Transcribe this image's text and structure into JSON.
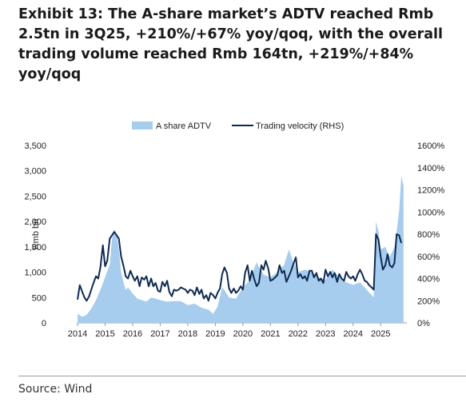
{
  "title": "Exhibit 13: The A-share market’s ADTV reached Rmb 2.5tn in 3Q25, +210%/+67% yoy/qoq, with the overall trading volume reached Rmb 164tn, +219%/+84% yoy/qoq",
  "source": "Source: Wind",
  "chart_data": {
    "type": "area",
    "ylabel": "Rmb bn",
    "ylim": [
      0,
      3500
    ],
    "y2lim": [
      0,
      1600
    ],
    "y_ticks": [
      "0",
      "500",
      "1,000",
      "1,500",
      "2,000",
      "2,500",
      "3,000",
      "3,500"
    ],
    "y2_ticks": [
      "0%",
      "200%",
      "400%",
      "600%",
      "800%",
      "1000%",
      "1200%",
      "1400%",
      "1600%"
    ],
    "x_ticks": [
      "2014",
      "2015",
      "2016",
      "2017",
      "2018",
      "2019",
      "2020",
      "2021",
      "2022",
      "2023",
      "2024",
      "2025"
    ],
    "legend_position": "top-center",
    "colors": {
      "area": "#a7cdee",
      "line": "#0f2a52"
    },
    "series": [
      {
        "name": "A share ADTV",
        "kind": "area",
        "axis": "left",
        "x": [
          2014.0,
          2014.17,
          2014.33,
          2014.5,
          2014.67,
          2014.83,
          2015.0,
          2015.17,
          2015.25,
          2015.33,
          2015.42,
          2015.5,
          2015.58,
          2015.67,
          2015.75,
          2015.83,
          2016.0,
          2016.17,
          2016.33,
          2016.5,
          2016.67,
          2016.83,
          2017.0,
          2017.25,
          2017.5,
          2017.75,
          2018.0,
          2018.25,
          2018.5,
          2018.75,
          2018.92,
          2019.08,
          2019.25,
          2019.33,
          2019.5,
          2019.75,
          2020.0,
          2020.25,
          2020.5,
          2020.58,
          2020.75,
          2021.0,
          2021.25,
          2021.5,
          2021.67,
          2021.83,
          2022.0,
          2022.25,
          2022.5,
          2022.75,
          2023.0,
          2023.25,
          2023.5,
          2023.75,
          2024.0,
          2024.25,
          2024.5,
          2024.67,
          2024.75,
          2024.83,
          2024.92,
          2025.0,
          2025.17,
          2025.33,
          2025.5,
          2025.58,
          2025.67,
          2025.75,
          2025.83
        ],
        "values": [
          180,
          120,
          160,
          280,
          450,
          650,
          900,
          1150,
          1650,
          1850,
          1750,
          1450,
          1000,
          800,
          650,
          700,
          580,
          480,
          450,
          420,
          500,
          480,
          450,
          420,
          430,
          430,
          350,
          380,
          300,
          260,
          180,
          320,
          700,
          650,
          500,
          480,
          700,
          850,
          1200,
          1100,
          950,
          900,
          1000,
          1150,
          1450,
          1200,
          1000,
          1050,
          1000,
          900,
          850,
          1050,
          900,
          800,
          750,
          800,
          650,
          550,
          500,
          2000,
          1800,
          1450,
          1500,
          1300,
          1500,
          1800,
          2200,
          2900,
          2700
        ]
      },
      {
        "name": "Trading velocity (RHS)",
        "kind": "line",
        "axis": "right",
        "x": [
          2014.0,
          2014.08,
          2014.17,
          2014.25,
          2014.33,
          2014.42,
          2014.5,
          2014.58,
          2014.67,
          2014.75,
          2014.83,
          2014.92,
          2015.0,
          2015.08,
          2015.17,
          2015.25,
          2015.33,
          2015.42,
          2015.5,
          2015.58,
          2015.67,
          2015.75,
          2015.83,
          2015.92,
          2016.0,
          2016.08,
          2016.17,
          2016.25,
          2016.33,
          2016.42,
          2016.5,
          2016.58,
          2016.67,
          2016.75,
          2016.83,
          2016.92,
          2017.0,
          2017.08,
          2017.17,
          2017.25,
          2017.33,
          2017.42,
          2017.5,
          2017.58,
          2017.67,
          2017.75,
          2017.83,
          2017.92,
          2018.0,
          2018.08,
          2018.17,
          2018.25,
          2018.33,
          2018.42,
          2018.5,
          2018.58,
          2018.67,
          2018.75,
          2018.83,
          2018.92,
          2019.0,
          2019.08,
          2019.17,
          2019.25,
          2019.33,
          2019.42,
          2019.5,
          2019.58,
          2019.67,
          2019.75,
          2019.83,
          2019.92,
          2020.0,
          2020.08,
          2020.17,
          2020.25,
          2020.33,
          2020.42,
          2020.5,
          2020.58,
          2020.67,
          2020.75,
          2020.83,
          2020.92,
          2021.0,
          2021.08,
          2021.17,
          2021.25,
          2021.33,
          2021.42,
          2021.5,
          2021.58,
          2021.67,
          2021.75,
          2021.83,
          2021.92,
          2022.0,
          2022.08,
          2022.17,
          2022.25,
          2022.33,
          2022.42,
          2022.5,
          2022.58,
          2022.67,
          2022.75,
          2022.83,
          2022.92,
          2023.0,
          2023.08,
          2023.17,
          2023.25,
          2023.33,
          2023.42,
          2023.5,
          2023.58,
          2023.67,
          2023.75,
          2023.83,
          2023.92,
          2024.0,
          2024.08,
          2024.17,
          2024.25,
          2024.33,
          2024.42,
          2024.5,
          2024.58,
          2024.67,
          2024.75,
          2024.83,
          2024.92,
          2025.0,
          2025.08,
          2025.17,
          2025.25,
          2025.33,
          2025.42,
          2025.5,
          2025.58,
          2025.67,
          2025.75
        ],
        "values": [
          210,
          340,
          280,
          230,
          200,
          240,
          300,
          360,
          420,
          400,
          500,
          700,
          510,
          560,
          760,
          790,
          820,
          790,
          760,
          600,
          510,
          420,
          400,
          470,
          420,
          380,
          420,
          330,
          410,
          390,
          420,
          330,
          400,
          330,
          360,
          290,
          280,
          370,
          330,
          380,
          280,
          240,
          300,
          290,
          300,
          320,
          310,
          300,
          270,
          300,
          290,
          250,
          320,
          260,
          300,
          220,
          250,
          200,
          270,
          250,
          220,
          270,
          310,
          440,
          500,
          450,
          310,
          270,
          310,
          270,
          290,
          330,
          300,
          450,
          520,
          380,
          470,
          390,
          330,
          360,
          520,
          480,
          560,
          490,
          380,
          390,
          410,
          430,
          520,
          450,
          470,
          370,
          420,
          470,
          530,
          590,
          410,
          440,
          400,
          420,
          380,
          470,
          470,
          410,
          450,
          380,
          400,
          360,
          480,
          420,
          460,
          410,
          450,
          370,
          440,
          400,
          380,
          460,
          420,
          400,
          420,
          380,
          440,
          480,
          440,
          380,
          370,
          340,
          320,
          300,
          800,
          750,
          600,
          480,
          520,
          620,
          520,
          500,
          540,
          800,
          790,
          720
        ]
      }
    ]
  }
}
